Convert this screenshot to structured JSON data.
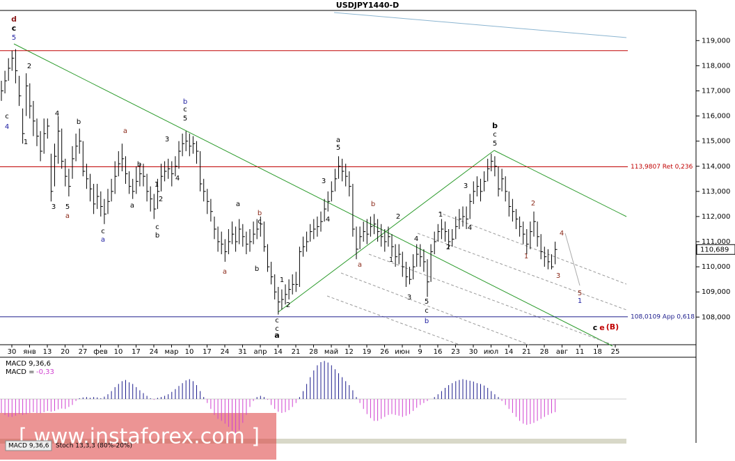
{
  "chart_data": {
    "type": "ohlc",
    "title": "USDJPY1440-D",
    "date_labels": [
      "30",
      "янв",
      "13",
      "20",
      "27",
      "фев",
      "10",
      "17",
      "24",
      "мар",
      "10",
      "17",
      "24",
      "31",
      "апр",
      "14",
      "21",
      "28",
      "май",
      "12",
      "19",
      "26",
      "июн",
      "9",
      "16",
      "23",
      "30",
      "июл",
      "14",
      "21",
      "28",
      "авг",
      "11",
      "18",
      "25"
    ],
    "highs": [
      117.4,
      117.8,
      118.3,
      118.6,
      118.66,
      117.6,
      116.3,
      117.7,
      117.3,
      116.6,
      115.9,
      115.4,
      115.9,
      115.9,
      114.5,
      114.9,
      116.0,
      115.5,
      114.3,
      113.9,
      114.8,
      115.3,
      115.5,
      115.0,
      114.1,
      113.7,
      113.3,
      113.3,
      113.0,
      112.7,
      113.1,
      113.5,
      114.2,
      114.6,
      114.9,
      114.4,
      113.8,
      113.5,
      114.0,
      114.1,
      114.1,
      113.7,
      113.2,
      112.9,
      113.5,
      114.1,
      114.2,
      114.3,
      114.2,
      114.4,
      115.0,
      115.3,
      115.4,
      115.3,
      115.2,
      115.0,
      114.6,
      113.5,
      113.1,
      112.7,
      112.0,
      111.6,
      111.4,
      111.1,
      111.5,
      111.8,
      111.6,
      111.9,
      111.7,
      111.4,
      111.5,
      111.8,
      111.9,
      112.0,
      111.8,
      110.9,
      110.2,
      109.7,
      109.2,
      109.1,
      109.3,
      109.5,
      109.7,
      109.8,
      110.8,
      111.2,
      111.4,
      111.7,
      111.9,
      112.0,
      112.2,
      112.7,
      113.0,
      113.4,
      113.9,
      114.4,
      114.3,
      114.1,
      113.8,
      113.3,
      111.6,
      111.6,
      111.8,
      111.9,
      112.0,
      112.1,
      111.9,
      111.7,
      111.5,
      111.6,
      111.3,
      110.9,
      110.9,
      110.6,
      110.2,
      110.0,
      110.5,
      110.9,
      110.9,
      110.7,
      110.3,
      110.9,
      111.4,
      111.7,
      111.9,
      111.8,
      111.5,
      111.5,
      112.0,
      112.3,
      112.4,
      112.4,
      112.9,
      113.4,
      113.6,
      113.5,
      113.8,
      114.3,
      114.5,
      114.4,
      114.0,
      113.9,
      113.6,
      113.0,
      112.7,
      112.3,
      112.0,
      111.8,
      111.5,
      111.8,
      112.2,
      111.8,
      111.3,
      110.8,
      110.7,
      110.5,
      111.0
    ],
    "lows": [
      116.6,
      116.9,
      117.4,
      117.8,
      117.3,
      116.4,
      114.9,
      116.0,
      115.9,
      115.2,
      114.8,
      114.2,
      114.5,
      115.1,
      112.6,
      113.2,
      114.1,
      113.9,
      113.2,
      112.8,
      113.5,
      114.2,
      114.5,
      113.6,
      113.1,
      112.6,
      112.1,
      112.3,
      112.0,
      111.7,
      112.1,
      112.6,
      112.9,
      113.6,
      113.8,
      113.3,
      112.9,
      112.7,
      112.9,
      113.2,
      113.2,
      112.6,
      112.2,
      111.9,
      112.3,
      113.0,
      113.4,
      113.5,
      113.2,
      113.6,
      113.9,
      114.4,
      114.6,
      114.4,
      114.5,
      114.1,
      113.0,
      112.6,
      112.1,
      111.8,
      111.1,
      110.6,
      110.5,
      110.2,
      110.5,
      110.9,
      110.6,
      110.9,
      110.8,
      110.5,
      110.6,
      110.9,
      111.1,
      111.2,
      110.6,
      109.8,
      109.3,
      108.7,
      108.1,
      108.3,
      108.5,
      108.7,
      108.9,
      109.0,
      109.2,
      110.4,
      110.6,
      111.0,
      111.1,
      111.2,
      111.4,
      111.8,
      112.2,
      112.6,
      113.0,
      113.5,
      113.4,
      113.2,
      112.8,
      111.2,
      110.3,
      110.7,
      111.0,
      110.9,
      111.2,
      111.3,
      111.0,
      110.8,
      110.6,
      110.8,
      110.4,
      110.0,
      110.1,
      109.6,
      109.2,
      109.3,
      109.5,
      110.0,
      110.0,
      109.8,
      108.8,
      109.4,
      110.5,
      111.0,
      111.1,
      111.0,
      110.7,
      110.8,
      111.1,
      111.5,
      111.6,
      111.5,
      111.9,
      112.5,
      112.8,
      112.6,
      113.0,
      113.4,
      113.8,
      113.6,
      112.8,
      113.0,
      112.6,
      112.0,
      111.8,
      111.5,
      111.2,
      110.9,
      110.5,
      110.7,
      111.2,
      110.8,
      110.3,
      110.0,
      109.9,
      109.9,
      110.1
    ],
    "closes": [
      117.0,
      117.4,
      117.9,
      118.3,
      117.8,
      116.8,
      115.3,
      117.2,
      116.4,
      115.8,
      115.2,
      114.6,
      115.3,
      115.6,
      113.0,
      114.4,
      115.4,
      114.2,
      113.6,
      113.2,
      114.3,
      114.8,
      115.0,
      113.8,
      113.5,
      113.1,
      112.5,
      112.8,
      112.4,
      112.1,
      112.6,
      113.0,
      113.6,
      114.1,
      114.3,
      113.7,
      113.2,
      113.0,
      113.4,
      113.7,
      113.6,
      113.0,
      112.7,
      112.3,
      113.0,
      113.6,
      113.8,
      113.9,
      113.7,
      114.0,
      114.6,
      114.9,
      115.0,
      114.8,
      114.9,
      114.6,
      113.3,
      113.0,
      112.6,
      112.2,
      111.5,
      111.0,
      110.9,
      110.6,
      111.0,
      111.3,
      111.0,
      111.5,
      111.2,
      110.9,
      111.0,
      111.3,
      111.5,
      111.7,
      110.8,
      110.0,
      109.6,
      109.0,
      108.6,
      108.7,
      108.9,
      109.1,
      109.3,
      109.3,
      110.6,
      110.8,
      111.0,
      111.4,
      111.5,
      111.6,
      111.8,
      112.3,
      112.6,
      113.0,
      113.5,
      114.0,
      113.8,
      113.6,
      113.2,
      111.5,
      110.7,
      111.2,
      111.4,
      111.3,
      111.6,
      111.7,
      111.4,
      111.2,
      111.0,
      111.2,
      110.8,
      110.4,
      110.5,
      110.0,
      109.6,
      109.5,
      110.0,
      110.5,
      110.4,
      110.2,
      109.4,
      110.6,
      111.0,
      111.4,
      111.5,
      111.4,
      111.0,
      111.1,
      111.6,
      111.9,
      112.0,
      111.9,
      112.6,
      113.0,
      113.2,
      113.0,
      113.4,
      113.9,
      114.2,
      114.0,
      113.1,
      113.5,
      113.0,
      112.4,
      112.2,
      111.9,
      111.6,
      111.3,
      110.9,
      111.4,
      111.8,
      111.2,
      110.6,
      110.4,
      110.2,
      110.0,
      110.689
    ],
    "bar_color": "#000000",
    "ylim": [
      106.9,
      120.2
    ],
    "yticks": [
      {
        "value": 108,
        "label": "108,000"
      },
      {
        "value": 109,
        "label": "109,000"
      },
      {
        "value": 110,
        "label": "110,000"
      },
      {
        "value": 111,
        "label": "111,000"
      },
      {
        "value": 112,
        "label": "112,000"
      },
      {
        "value": 113,
        "label": "113,000"
      },
      {
        "value": 114,
        "label": "114,000"
      },
      {
        "value": 115,
        "label": "115,000"
      },
      {
        "value": 116,
        "label": "116,000"
      },
      {
        "value": 117,
        "label": "117,000"
      },
      {
        "value": 118,
        "label": "118,000"
      },
      {
        "value": 119,
        "label": "119,000"
      }
    ],
    "current_price": {
      "value": 110.689,
      "label": "110,689"
    },
    "levels": [
      {
        "value": 118.6,
        "color": "#c00000"
      },
      {
        "value": 113.9807,
        "label": "113,9807 Ret 0,236",
        "color": "#c00000"
      },
      {
        "value": 108.0109,
        "label": "108,0109 App 0,618",
        "color": "#1c1c8c"
      }
    ],
    "annotations": [
      {
        "text": "d",
        "color": "#8b1a1a",
        "bold": true
      },
      {
        "text": "c",
        "color": "#000",
        "bold": true
      },
      {
        "text": "5",
        "color": "#1c1ca0"
      },
      {
        "text": "2",
        "color": "#000"
      },
      {
        "text": "c",
        "color": "#000"
      },
      {
        "text": "4",
        "color": "#1c1ca0"
      },
      {
        "text": "1",
        "color": "#000"
      },
      {
        "text": "4",
        "color": "#000"
      },
      {
        "text": "b",
        "color": "#000"
      },
      {
        "text": "3",
        "color": "#000"
      },
      {
        "text": "5",
        "color": "#000"
      },
      {
        "text": "a",
        "color": "#8b2a1a"
      },
      {
        "text": "a",
        "color": "#8b2a1a"
      },
      {
        "text": "c",
        "color": "#000"
      },
      {
        "text": "a",
        "color": "#1c1ca0"
      },
      {
        "text": "3",
        "color": "#000"
      },
      {
        "text": "b",
        "color": "#1c1ca0"
      },
      {
        "text": "c",
        "color": "#000"
      },
      {
        "text": "5",
        "color": "#000"
      },
      {
        "text": "b",
        "color": "#000"
      },
      {
        "text": "1",
        "color": "#000"
      },
      {
        "text": "2",
        "color": "#000"
      },
      {
        "text": "4",
        "color": "#000"
      },
      {
        "text": "a",
        "color": "#000"
      },
      {
        "text": "c",
        "color": "#000"
      },
      {
        "text": "b",
        "color": "#000"
      },
      {
        "text": "a",
        "color": "#000"
      },
      {
        "text": "b",
        "color": "#8b2a1a"
      },
      {
        "text": "c",
        "color": "#000"
      },
      {
        "text": "a",
        "color": "#8b2a1a"
      },
      {
        "text": "b",
        "color": "#000"
      },
      {
        "text": "1",
        "color": "#000"
      },
      {
        "text": "2",
        "color": "#000"
      },
      {
        "text": "c",
        "color": "#000"
      },
      {
        "text": "c",
        "color": "#000"
      },
      {
        "text": "a",
        "color": "#000",
        "bold": true
      },
      {
        "text": "a",
        "color": "#000"
      },
      {
        "text": "5",
        "color": "#000"
      },
      {
        "text": "3",
        "color": "#000"
      },
      {
        "text": "4",
        "color": "#000"
      },
      {
        "text": "b",
        "color": "#8b2a1a"
      },
      {
        "text": "a",
        "color": "#8b2a1a"
      },
      {
        "text": "2",
        "color": "#000"
      },
      {
        "text": "1",
        "color": "#000"
      },
      {
        "text": "4",
        "color": "#000"
      },
      {
        "text": "3",
        "color": "#000"
      },
      {
        "text": "5",
        "color": "#000"
      },
      {
        "text": "c",
        "color": "#000"
      },
      {
        "text": "b",
        "color": "#1c1ca0"
      },
      {
        "text": "1",
        "color": "#000"
      },
      {
        "text": "3",
        "color": "#000"
      },
      {
        "text": "4",
        "color": "#000"
      },
      {
        "text": "2",
        "color": "#000"
      },
      {
        "text": "b",
        "color": "#000",
        "bold": true
      },
      {
        "text": "c",
        "color": "#000"
      },
      {
        "text": "5",
        "color": "#000"
      },
      {
        "text": "2",
        "color": "#8b2a1a"
      },
      {
        "text": "1",
        "color": "#8b2a1a"
      },
      {
        "text": "4",
        "color": "#8b2a1a"
      },
      {
        "text": "3",
        "color": "#8b2a1a"
      },
      {
        "text": "5",
        "color": "#8b2a1a"
      },
      {
        "text": "1",
        "color": "#1c1ca0"
      },
      {
        "text": "c",
        "color": "#000",
        "bold": true
      },
      {
        "text": "e",
        "color": "#c00000",
        "bold": true
      },
      {
        "text": "(B)",
        "color": "#c00000",
        "bold": true
      }
    ],
    "macd": {
      "title": "MACD 9,36,6",
      "prefix": "MACD =",
      "last": {
        "value": -0.33,
        "label": "-0,33"
      },
      "positive_color": "#1c1c8c",
      "negative_color": "#d040d0",
      "values": [
        -0.35,
        -0.4,
        -0.45,
        -0.45,
        -0.42,
        -0.38,
        -0.4,
        -0.38,
        -0.35,
        -0.33,
        -0.35,
        -0.36,
        -0.33,
        -0.3,
        -0.32,
        -0.3,
        -0.26,
        -0.24,
        -0.25,
        -0.2,
        -0.15,
        -0.05,
        0.02,
        0.04,
        0.05,
        0.03,
        0.05,
        0.04,
        0.02,
        0.06,
        0.12,
        0.2,
        0.3,
        0.38,
        0.45,
        0.48,
        0.42,
        0.38,
        0.3,
        0.22,
        0.15,
        0.08,
        0.02,
        -0.02,
        0.03,
        0.05,
        0.08,
        0.12,
        0.18,
        0.25,
        0.33,
        0.4,
        0.47,
        0.5,
        0.45,
        0.35,
        0.2,
        0.05,
        -0.1,
        -0.25,
        -0.4,
        -0.5,
        -0.55,
        -0.62,
        -0.7,
        -0.8,
        -0.85,
        -0.78,
        -0.6,
        -0.4,
        -0.2,
        -0.05,
        0.05,
        0.08,
        0.05,
        -0.02,
        -0.15,
        -0.25,
        -0.32,
        -0.35,
        -0.33,
        -0.28,
        -0.2,
        -0.1,
        0.05,
        0.2,
        0.38,
        0.55,
        0.72,
        0.85,
        0.93,
        0.96,
        0.92,
        0.85,
        0.75,
        0.65,
        0.55,
        0.45,
        0.35,
        0.22,
        0.05,
        -0.1,
        -0.25,
        -0.38,
        -0.48,
        -0.55,
        -0.55,
        -0.5,
        -0.45,
        -0.4,
        -0.38,
        -0.4,
        -0.42,
        -0.45,
        -0.42,
        -0.38,
        -0.3,
        -0.22,
        -0.15,
        -0.1,
        -0.05,
        0.0,
        0.05,
        0.12,
        0.2,
        0.28,
        0.35,
        0.4,
        0.45,
        0.48,
        0.5,
        0.48,
        0.46,
        0.44,
        0.4,
        0.38,
        0.34,
        0.28,
        0.2,
        0.12,
        0.05,
        -0.05,
        -0.15,
        -0.25,
        -0.35,
        -0.45,
        -0.55,
        -0.62,
        -0.65,
        -0.63,
        -0.6,
        -0.55,
        -0.5,
        -0.45,
        -0.4,
        -0.36,
        -0.33
      ]
    },
    "tabs": [
      "MACD 9,36,6",
      "Stoch 13,3,3 (80%-20%)"
    ],
    "watermark": "[ www.instaforex.com ]"
  }
}
